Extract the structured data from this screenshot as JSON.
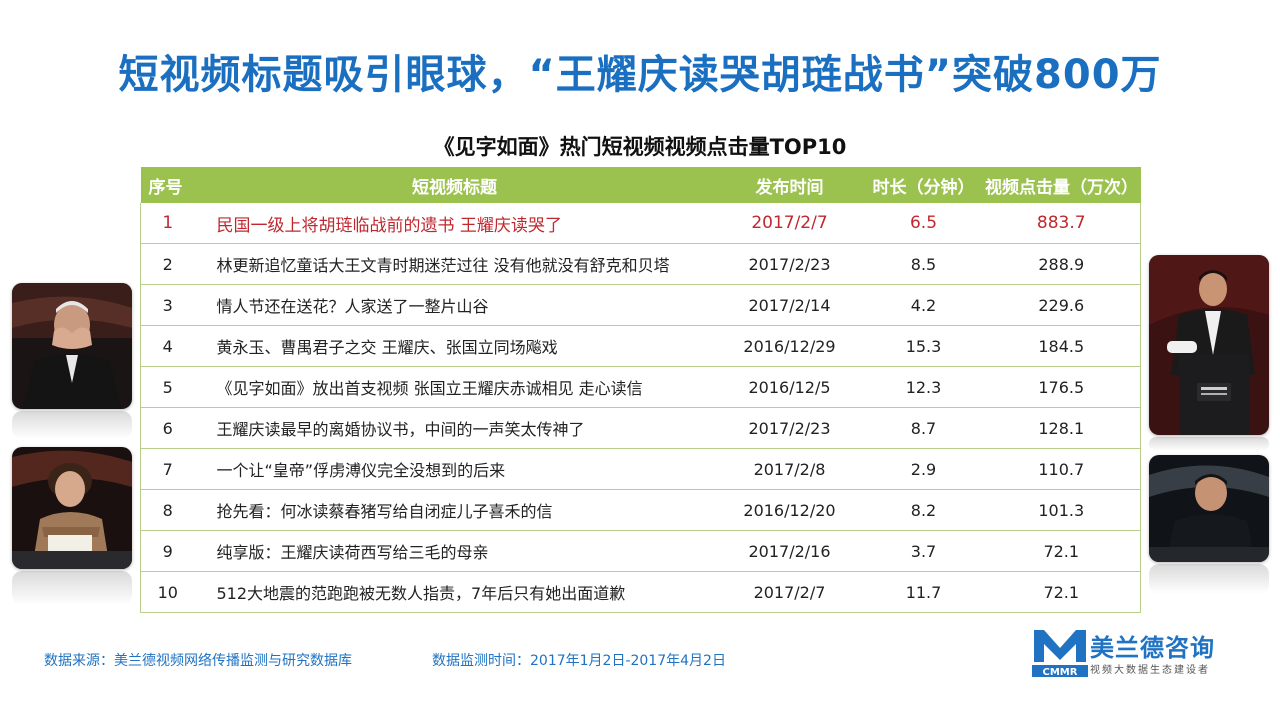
{
  "title": "短视频标题吸引眼球，“王耀庆读哭胡琏战书”突破800万",
  "table": {
    "caption": "《见字如面》热门短视频视频点击量TOP10",
    "headers": [
      "序号",
      "短视频标题",
      "发布时间",
      "时长（分钟）",
      "视频点击量（万次）"
    ],
    "rows": [
      {
        "rank": "1",
        "title": "民国一级上将胡琏临战前的遗书 王耀庆读哭了",
        "date": "2017/2/7",
        "duration": "6.5",
        "views": "883.7"
      },
      {
        "rank": "2",
        "title": "林更新追忆童话大王文青时期迷茫过往 没有他就没有舒克和贝塔",
        "date": "2017/2/23",
        "duration": "8.5",
        "views": "288.9"
      },
      {
        "rank": "3",
        "title": "情人节还在送花？人家送了一整片山谷",
        "date": "2017/2/14",
        "duration": "4.2",
        "views": "229.6"
      },
      {
        "rank": "4",
        "title": "黄永玉、曹禺君子之交 王耀庆、张国立同场飚戏",
        "date": "2016/12/29",
        "duration": "15.3",
        "views": "184.5"
      },
      {
        "rank": "5",
        "title": "《见字如面》放出首支视频 张国立王耀庆赤诚相见 走心读信",
        "date": "2016/12/5",
        "duration": "12.3",
        "views": "176.5"
      },
      {
        "rank": "6",
        "title": "王耀庆读最早的离婚协议书，中间的一声笑太传神了",
        "date": "2017/2/23",
        "duration": "8.7",
        "views": "128.1"
      },
      {
        "rank": "7",
        "title": "一个让“皇帝”俘虏溥仪完全没想到的后来",
        "date": "2017/2/8",
        "duration": "2.9",
        "views": "110.7"
      },
      {
        "rank": "8",
        "title": "抢先看：何冰读蔡春猪写给自闭症儿子喜禾的信",
        "date": "2016/12/20",
        "duration": "8.2",
        "views": "101.3"
      },
      {
        "rank": "9",
        "title": "纯享版：王耀庆读荷西写给三毛的母亲",
        "date": "2017/2/16",
        "duration": "3.7",
        "views": "72.1"
      },
      {
        "rank": "10",
        "title": "512大地震的范跑跑被无数人指责，7年后只有她出面道歉",
        "date": "2017/2/7",
        "duration": "11.7",
        "views": "72.1"
      }
    ]
  },
  "footer": {
    "source": "数据来源：美兰德视频网络传播监测与研究数据库",
    "period": "数据监测时间：2017年1月2日-2017年4月2日"
  },
  "logo": {
    "mark": "M",
    "mark_sub": "CMMR",
    "name": "美兰德咨询",
    "tagline": "视频大数据生态建设者"
  },
  "colors": {
    "title": "#1a6fc0",
    "header_bg": "#9bc24e",
    "highlight": "#c0282f",
    "footer": "#1f73c2"
  }
}
